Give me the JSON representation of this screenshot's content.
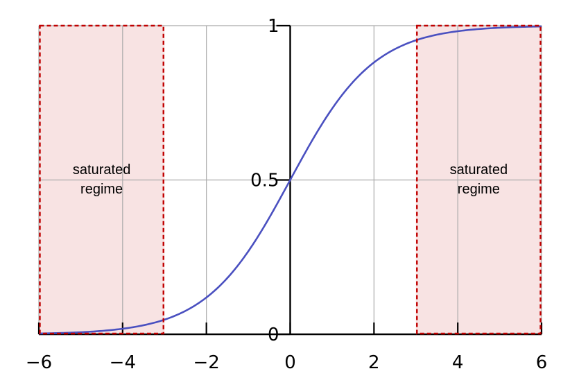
{
  "chart_data": {
    "type": "line",
    "title": "",
    "xlabel": "",
    "ylabel": "",
    "xlim": [
      -6,
      6
    ],
    "ylim": [
      0,
      1
    ],
    "grid": true,
    "x_ticks": [
      -6,
      -4,
      -2,
      0,
      2,
      4,
      6
    ],
    "x_tick_labels": [
      "−6",
      "−4",
      "−2",
      "0",
      "2",
      "4",
      "6"
    ],
    "y_ticks": [
      0,
      0.5,
      1
    ],
    "y_tick_labels": [
      "0",
      "0.5",
      "1"
    ],
    "series": [
      {
        "function": "logistic sigmoid 1/(1+e^-x)",
        "color": "#4a50c0",
        "x": [
          -6,
          -5,
          -4,
          -3,
          -2,
          -1,
          0,
          1,
          2,
          3,
          4,
          5,
          6
        ],
        "y": [
          0.0025,
          0.0067,
          0.018,
          0.047,
          0.119,
          0.269,
          0.5,
          0.731,
          0.881,
          0.953,
          0.982,
          0.9933,
          0.9975
        ]
      }
    ],
    "regions": [
      {
        "x_range": [
          -6,
          -3
        ],
        "label_line1": "saturated",
        "label_line2": "regime"
      },
      {
        "x_range": [
          3,
          6
        ],
        "label_line1": "saturated",
        "label_line2": "regime"
      }
    ],
    "region_fill": "#f8e3e3",
    "region_border": "#c00000",
    "grid_color": "#aaaaaa",
    "axis_color": "#000000"
  }
}
